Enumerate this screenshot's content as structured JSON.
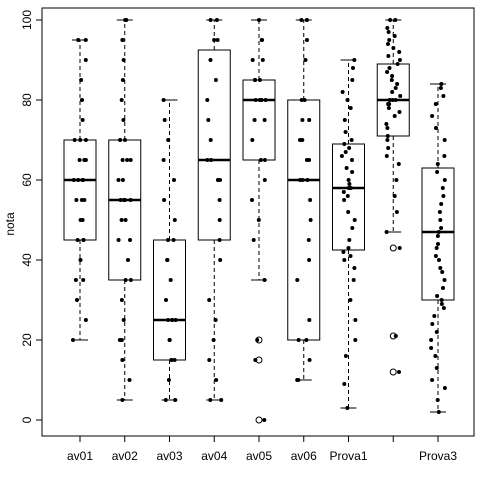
{
  "chart_data": {
    "type": "box",
    "ylabel": "nota",
    "xlabel": "",
    "title": "",
    "ylim": [
      0,
      100
    ],
    "yticks": [
      0,
      20,
      40,
      60,
      80,
      100
    ],
    "categories": [
      "av01",
      "av02",
      "av03",
      "av04",
      "av05",
      "av06",
      "Prova1",
      "",
      "Prova3"
    ],
    "boxes": [
      {
        "category": "av01",
        "min": 20,
        "q1": 45,
        "median": 60,
        "q3": 70,
        "max": 95,
        "outliers": []
      },
      {
        "category": "av02",
        "min": 5,
        "q1": 35,
        "median": 55,
        "q3": 70,
        "max": 100,
        "outliers": []
      },
      {
        "category": "av03",
        "min": 5,
        "q1": 15,
        "median": 25,
        "q3": 45,
        "max": 80,
        "outliers": []
      },
      {
        "category": "av04",
        "min": 5,
        "q1": 45,
        "median": 65,
        "q3": 92.5,
        "max": 100,
        "outliers": []
      },
      {
        "category": "av05",
        "min": 35,
        "q1": 65,
        "median": 80,
        "q3": 85,
        "max": 100,
        "outliers": [
          20,
          15,
          0
        ]
      },
      {
        "category": "av06",
        "min": 10,
        "q1": 20,
        "median": 60,
        "q3": 80,
        "max": 100,
        "outliers": []
      },
      {
        "category": "Prova1",
        "min": 3,
        "q1": 42.5,
        "median": 58,
        "q3": 69,
        "max": 90,
        "outliers": []
      },
      {
        "category": "",
        "min": 47,
        "q1": 71,
        "median": 80,
        "q3": 89,
        "max": 100,
        "outliers": [
          43,
          21,
          12
        ]
      },
      {
        "category": "Prova3",
        "min": 2,
        "q1": 30,
        "median": 47,
        "q3": 63,
        "max": 84,
        "outliers": []
      }
    ],
    "jitter_points": [
      [
        20,
        25,
        30,
        35,
        35,
        40,
        45,
        45,
        45,
        50,
        50,
        55,
        55,
        55,
        60,
        60,
        60,
        60,
        60,
        65,
        65,
        65,
        70,
        70,
        70,
        75,
        80,
        85,
        90,
        95,
        95
      ],
      [
        5,
        10,
        15,
        20,
        20,
        25,
        30,
        35,
        35,
        40,
        45,
        45,
        50,
        50,
        55,
        55,
        55,
        55,
        60,
        60,
        65,
        65,
        65,
        70,
        70,
        75,
        80,
        85,
        90,
        95,
        100,
        100
      ],
      [
        5,
        5,
        10,
        15,
        15,
        15,
        20,
        20,
        25,
        25,
        25,
        25,
        30,
        35,
        40,
        40,
        45,
        45,
        50,
        55,
        60,
        65,
        70,
        75,
        80
      ],
      [
        5,
        5,
        10,
        15,
        20,
        25,
        30,
        40,
        45,
        50,
        55,
        60,
        60,
        65,
        65,
        70,
        75,
        80,
        85,
        90,
        95,
        95,
        100,
        100
      ],
      [
        0,
        15,
        20,
        35,
        45,
        50,
        55,
        60,
        65,
        65,
        70,
        75,
        75,
        80,
        80,
        80,
        80,
        85,
        85,
        85,
        90,
        90,
        95,
        95,
        100
      ],
      [
        10,
        10,
        15,
        20,
        20,
        25,
        35,
        40,
        45,
        50,
        55,
        60,
        60,
        60,
        65,
        65,
        70,
        70,
        75,
        75,
        80,
        80,
        90,
        95,
        100,
        100
      ],
      [
        3,
        9,
        16,
        20,
        25,
        30,
        35,
        38,
        40,
        41,
        42,
        43,
        45,
        48,
        50,
        52,
        55,
        56,
        57,
        58,
        58,
        59,
        60,
        62,
        63,
        65,
        66,
        67,
        68,
        69,
        70,
        72,
        75,
        78,
        80,
        82,
        85,
        88,
        90
      ],
      [
        12,
        21,
        43,
        47,
        52,
        56,
        60,
        64,
        66,
        68,
        70,
        71,
        73,
        74,
        76,
        77,
        78,
        79,
        79,
        80,
        80,
        80,
        81,
        82,
        83,
        84,
        85,
        86,
        87,
        88,
        89,
        90,
        91,
        92,
        93,
        94,
        95,
        96,
        97,
        98,
        100,
        100
      ],
      [
        2,
        5,
        8,
        10,
        13,
        16,
        18,
        20,
        22,
        24,
        26,
        28,
        29,
        30,
        31,
        33,
        35,
        37,
        38,
        40,
        41,
        43,
        44,
        46,
        47,
        48,
        50,
        52,
        54,
        56,
        58,
        60,
        62,
        64,
        66,
        70,
        73,
        76,
        79,
        81,
        83,
        84
      ]
    ]
  }
}
